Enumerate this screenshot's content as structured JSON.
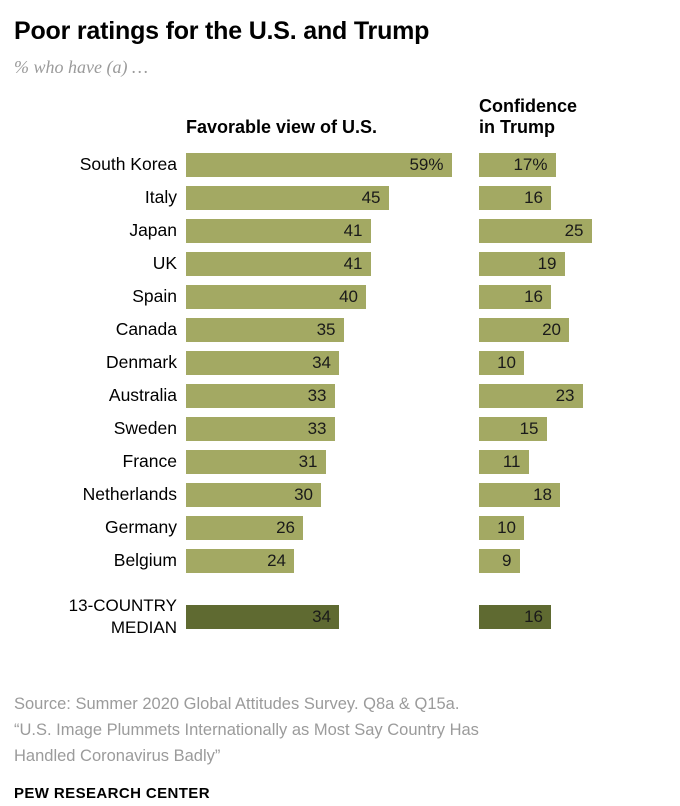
{
  "header": {
    "title": "Poor ratings for the U.S. and Trump",
    "subtitle": "% who have (a) …"
  },
  "columns": {
    "col1_header": "Favorable view of U.S.",
    "col2_header_line1": "Confidence",
    "col2_header_line2": "in Trump"
  },
  "chart_data": {
    "type": "bar",
    "orientation": "horizontal",
    "value_labels": "inside-end",
    "legend": "none",
    "categories": [
      "South Korea",
      "Italy",
      "Japan",
      "UK",
      "Spain",
      "Canada",
      "Denmark",
      "Australia",
      "Sweden",
      "France",
      "Netherlands",
      "Germany",
      "Belgium"
    ],
    "series": [
      {
        "name": "Favorable view of U.S.",
        "values": [
          59,
          45,
          41,
          41,
          40,
          35,
          34,
          33,
          33,
          31,
          30,
          26,
          24
        ]
      },
      {
        "name": "Confidence in Trump",
        "values": [
          17,
          16,
          25,
          19,
          16,
          20,
          10,
          23,
          15,
          11,
          18,
          10,
          9
        ]
      }
    ],
    "value_suffix_first_row": "%",
    "median": {
      "label_line1": "13-COUNTRY",
      "label_line2": "MEDIAN",
      "favorable": 34,
      "confidence": 16
    },
    "xlim": [
      0,
      65
    ],
    "colors": {
      "bar": "#a3a963",
      "median_bar": "#5f6a31"
    }
  },
  "footer": {
    "source_line1": "Source: Summer 2020 Global Attitudes Survey. Q8a & Q15a.",
    "source_line2": "“U.S. Image Plummets Internationally as Most Say Country Has",
    "source_line3": "Handled Coronavirus Badly”",
    "brand": "PEW RESEARCH CENTER"
  }
}
